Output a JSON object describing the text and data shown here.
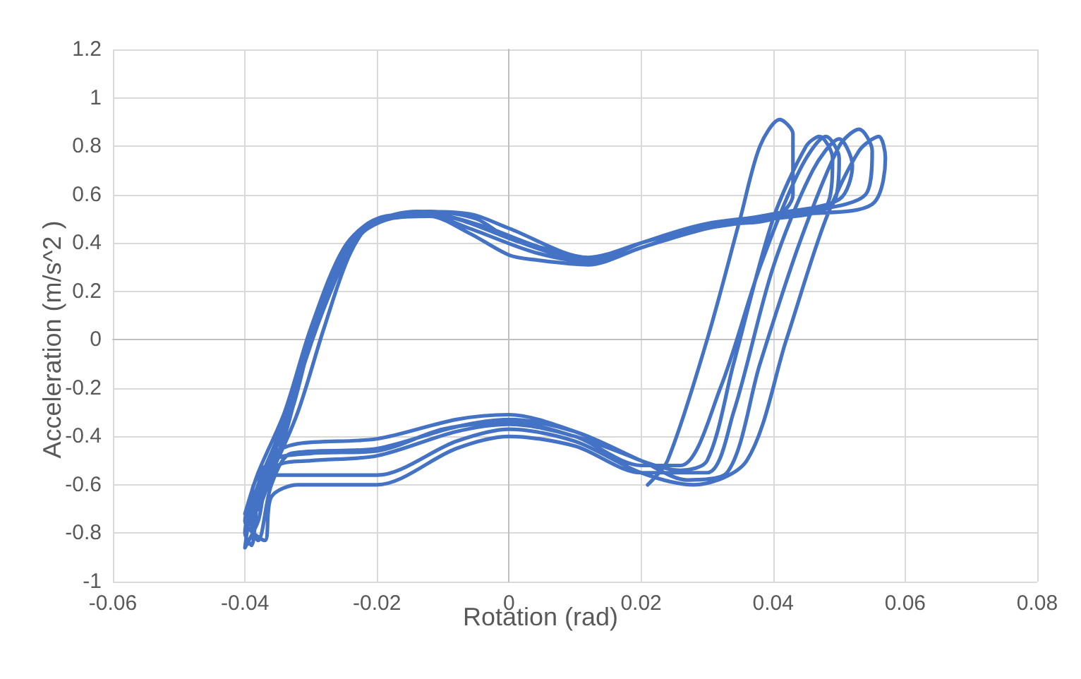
{
  "chart_data": {
    "type": "line",
    "xlabel": "Rotation (rad)",
    "ylabel": "Acceleration (m/s^2 )",
    "xlim": [
      -0.06,
      0.08
    ],
    "xticks": [
      -0.06,
      -0.04,
      -0.02,
      0,
      0.02,
      0.04,
      0.06,
      0.08
    ],
    "ylim": [
      -1,
      1.2
    ],
    "yticks": [
      -1,
      -0.8,
      -0.6,
      -0.4,
      -0.2,
      0,
      0.2,
      0.4,
      0.6,
      0.8,
      1,
      1.2
    ],
    "grid": true,
    "marker": "none",
    "line_style": "solid",
    "series": [
      {
        "color": "#4472c4",
        "x": [
          0.021,
          0.024,
          0.03,
          0.035,
          0.038,
          0.041,
          0.043,
          0.043,
          0.04,
          0.03,
          0.02,
          0.012,
          0.004,
          0,
          -0.006,
          -0.012,
          -0.018,
          -0.024,
          -0.028,
          -0.032,
          -0.035,
          -0.038,
          -0.04,
          -0.039,
          -0.038,
          -0.036,
          -0.032,
          -0.02,
          -0.008,
          0,
          0.01,
          0.02,
          0.026,
          0.03,
          0.034,
          0.04,
          0.045,
          0.047,
          0.049,
          0.048,
          0.04,
          0.03,
          0.02,
          0.012,
          0,
          -0.005,
          -0.012,
          -0.018,
          -0.023,
          -0.027,
          -0.031,
          -0.034,
          -0.037,
          -0.039,
          -0.038,
          -0.036,
          -0.033,
          -0.02,
          -0.008,
          0,
          0.01,
          0.02,
          0.027,
          0.033,
          0.038,
          0.044,
          0.05,
          0.053,
          0.055,
          0.054,
          0.045,
          0.03,
          0.02,
          0.012,
          0,
          -0.006,
          -0.014,
          -0.02,
          -0.025,
          -0.029,
          -0.033,
          -0.036,
          -0.039,
          -0.04,
          -0.038,
          -0.036,
          -0.03,
          -0.02,
          -0.008,
          0,
          0.01,
          0.02,
          0.028,
          0.036,
          0.042,
          0.048,
          0.053,
          0.056,
          0.057,
          0.055,
          0.045,
          0.03,
          0.02,
          0.013,
          0.002,
          -0.008,
          -0.015,
          -0.021,
          -0.026,
          -0.03,
          -0.033,
          -0.037,
          -0.04,
          -0.037,
          -0.036,
          -0.032,
          -0.02,
          -0.008,
          0,
          0.01,
          0.02,
          0.03,
          0.034,
          0.04,
          0.046,
          0.05,
          0.052,
          0.05,
          0.04,
          0.03,
          0.02,
          0.014,
          0.005,
          -0.004,
          -0.012,
          -0.02,
          -0.025,
          -0.03,
          -0.034,
          -0.038,
          -0.04,
          -0.038,
          -0.035,
          -0.03,
          -0.02,
          -0.008,
          0,
          0.01,
          0.02,
          0.026,
          0.032,
          0.038,
          0.044,
          0.048,
          0.05,
          0.049,
          0.04,
          0.03,
          0.02,
          0.013,
          0.004,
          -0.006,
          -0.013,
          -0.02,
          -0.024,
          -0.028,
          -0.032,
          -0.036,
          -0.039,
          -0.039,
          -0.036,
          -0.03,
          -0.02,
          -0.01,
          0,
          0.01,
          0.02
        ],
        "values": [
          -0.6,
          -0.5,
          0,
          0.5,
          0.8,
          0.91,
          0.85,
          0.6,
          0.5,
          0.47,
          0.38,
          0.31,
          0.33,
          0.35,
          0.44,
          0.51,
          0.5,
          0.4,
          0.15,
          -0.15,
          -0.4,
          -0.6,
          -0.8,
          -0.85,
          -0.65,
          -0.48,
          -0.43,
          -0.41,
          -0.33,
          -0.31,
          -0.38,
          -0.5,
          -0.54,
          -0.5,
          -0.1,
          0.5,
          0.8,
          0.84,
          0.75,
          0.55,
          0.5,
          0.47,
          0.4,
          0.33,
          0.42,
          0.5,
          0.53,
          0.51,
          0.42,
          0.2,
          -0.1,
          -0.4,
          -0.6,
          -0.78,
          -0.83,
          -0.6,
          -0.47,
          -0.45,
          -0.36,
          -0.33,
          -0.38,
          -0.5,
          -0.58,
          -0.55,
          -0.1,
          0.4,
          0.8,
          0.87,
          0.78,
          0.6,
          0.53,
          0.48,
          0.4,
          0.34,
          0.46,
          0.52,
          0.53,
          0.49,
          0.35,
          0.1,
          -0.25,
          -0.5,
          -0.7,
          -0.86,
          -0.75,
          -0.56,
          -0.56,
          -0.56,
          -0.42,
          -0.37,
          -0.42,
          -0.55,
          -0.6,
          -0.5,
          0,
          0.5,
          0.78,
          0.84,
          0.75,
          0.56,
          0.52,
          0.48,
          0.4,
          0.33,
          0.4,
          0.5,
          0.52,
          0.47,
          0.3,
          0,
          -0.3,
          -0.55,
          -0.75,
          -0.83,
          -0.65,
          -0.6,
          -0.6,
          -0.45,
          -0.4,
          -0.44,
          -0.55,
          -0.55,
          -0.3,
          0.3,
          0.7,
          0.83,
          0.72,
          0.58,
          0.52,
          0.47,
          0.38,
          0.33,
          0.38,
          0.47,
          0.52,
          0.5,
          0.38,
          0.05,
          -0.3,
          -0.55,
          -0.72,
          -0.7,
          -0.52,
          -0.5,
          -0.48,
          -0.38,
          -0.35,
          -0.4,
          -0.52,
          -0.52,
          -0.2,
          0.3,
          0.7,
          0.84,
          0.75,
          0.56,
          0.5,
          0.46,
          0.38,
          0.32,
          0.36,
          0.46,
          0.52,
          0.5,
          0.36,
          0.05,
          -0.3,
          -0.55,
          -0.7,
          -0.64,
          -0.5,
          -0.47,
          -0.46,
          -0.37,
          -0.34,
          -0.4,
          -0.5
        ]
      }
    ]
  }
}
